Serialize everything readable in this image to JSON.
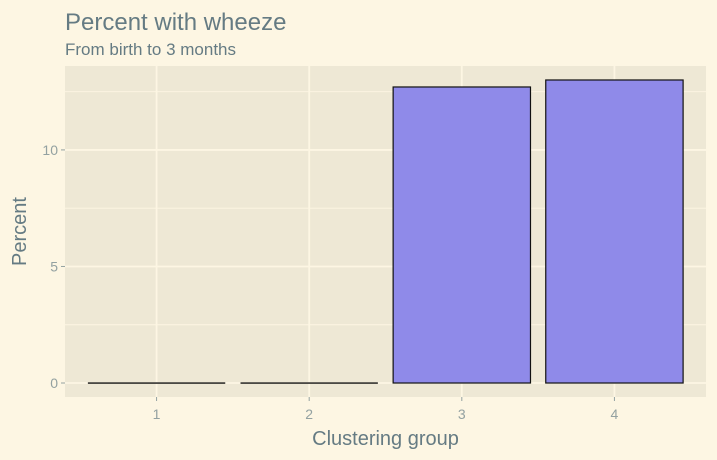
{
  "colors": {
    "background": "#fdf6e3",
    "panel": "#eee8d5",
    "grid": "#fdf6e3",
    "text": "#657b83",
    "tick_text": "#93a1a1",
    "bar_fill": "#8f8ae9",
    "bar_stroke": "#111111"
  },
  "chart_data": {
    "type": "bar",
    "title": "Percent with wheeze",
    "subtitle": "From birth to 3 months",
    "xlabel": "Clustering group",
    "ylabel": "Percent",
    "categories": [
      "1",
      "2",
      "3",
      "4"
    ],
    "values": [
      0,
      0,
      12.7,
      13.0
    ],
    "ylim": [
      -0.6,
      13.6
    ],
    "yticks": [
      0,
      5,
      10
    ],
    "ytick_labels": [
      "0",
      "5",
      "10"
    ],
    "grid": true,
    "legend": "none"
  }
}
